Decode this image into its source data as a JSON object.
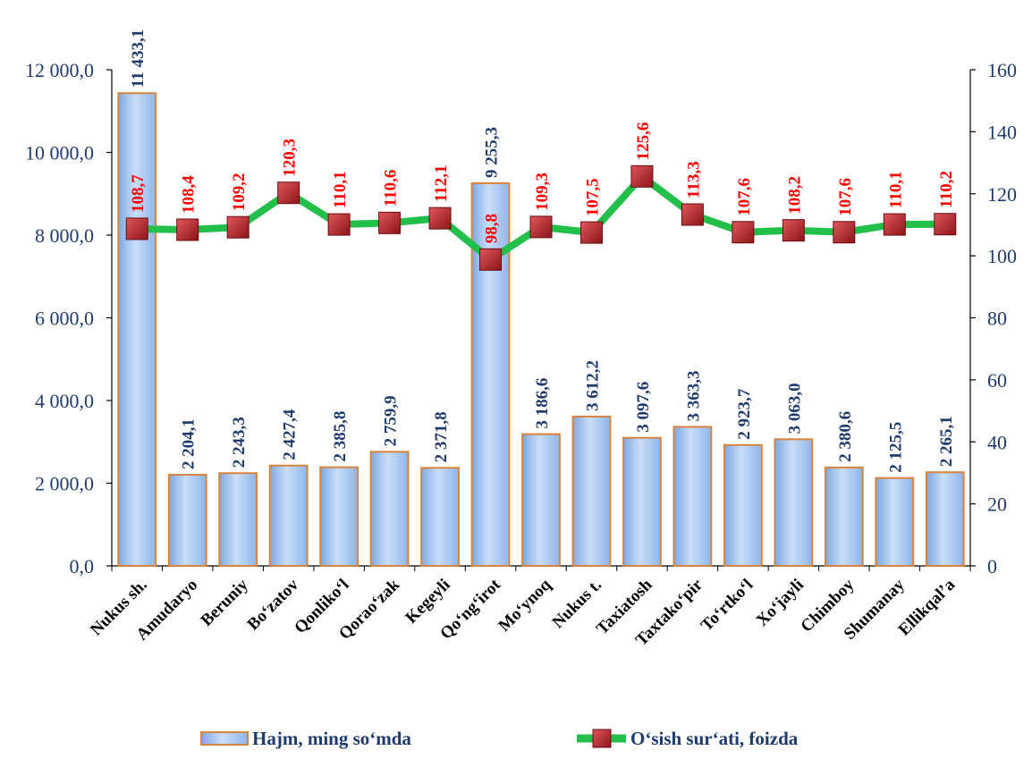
{
  "chart_data": {
    "type": "bar",
    "categories": [
      "Nukus sh.",
      "Amudaryo",
      "Beruniy",
      "Bo‘zatov",
      "Qonliko‘l",
      "Qorao‘zak",
      "Kegeyli",
      "Qo‘ng‘irot",
      "Mo‘ynoq",
      "Nukus t.",
      "Taxiatosh",
      "Taxtako‘pir",
      "To‘rtko‘l",
      "Xo‘jayli",
      "Chimboy",
      "Shumanay",
      "Ellikqal’a"
    ],
    "series": [
      {
        "name": "Hajm, ming so‘mda",
        "type": "bar",
        "axis": "left",
        "values": [
          11433.1,
          2204.1,
          2243.3,
          2427.4,
          2385.8,
          2759.9,
          2371.8,
          9255.3,
          3186.6,
          3612.2,
          3097.6,
          3363.3,
          2923.7,
          3063.0,
          2380.6,
          2125.5,
          2265.1
        ],
        "labels": [
          "11 433,1",
          "2 204,1",
          "2 243,3",
          "2 427,4",
          "2 385,8",
          "2 759,9",
          "2 371,8",
          "9 255,3",
          "3 186,6",
          "3 612,2",
          "3 097,6",
          "3 363,3",
          "2 923,7",
          "3 063,0",
          "2 380,6",
          "2 125,5",
          "2 265,1"
        ]
      },
      {
        "name": "O‘sish sur‘ati, foizda",
        "type": "line",
        "axis": "right",
        "values": [
          108.7,
          108.4,
          109.2,
          120.3,
          110.1,
          110.6,
          112.1,
          98.8,
          109.3,
          107.5,
          125.6,
          113.3,
          107.6,
          108.2,
          107.6,
          110.1,
          110.2
        ],
        "labels": [
          "108,7",
          "108,4",
          "109,2",
          "120,3",
          "110,1",
          "110,6",
          "112,1",
          "98,8",
          "109,3",
          "107,5",
          "125,6",
          "113,3",
          "107,6",
          "108,2",
          "107,6",
          "110,1",
          "110,2"
        ]
      }
    ],
    "left_axis": {
      "ylim": [
        0,
        12000
      ],
      "ticks": [
        0,
        2000,
        4000,
        6000,
        8000,
        10000,
        12000
      ],
      "tick_labels": [
        "0,0",
        "2 000,0",
        "4 000,0",
        "6 000,0",
        "8 000,0",
        "10 000,0",
        "12 000,0"
      ]
    },
    "right_axis": {
      "ylim": [
        0,
        160
      ],
      "ticks": [
        0,
        20,
        40,
        60,
        80,
        100,
        120,
        140,
        160
      ],
      "tick_labels": [
        "0",
        "20",
        "40",
        "60",
        "80",
        "100",
        "120",
        "140",
        "160"
      ]
    },
    "grid": false,
    "legend_position": "bottom",
    "colors": {
      "bar_fill": "#9cc2ee",
      "bar_edge": "#d9843a",
      "line": "#22c04a",
      "marker": "#c0272d",
      "bar_label": "#1f3b6e",
      "line_label": "#ff0000",
      "axis_text": "#1f3b6e"
    }
  }
}
